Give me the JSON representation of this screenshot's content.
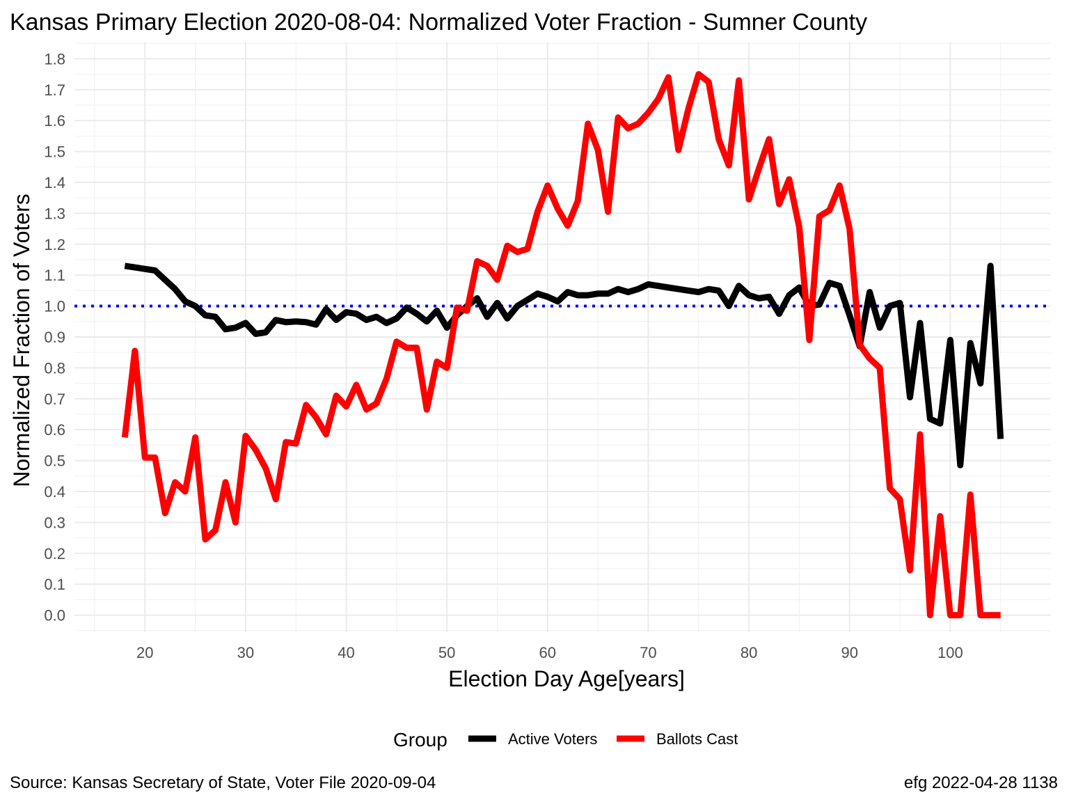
{
  "chart_data": {
    "type": "line",
    "title": "Kansas Primary Election 2020-08-04:  Normalized Voter Fraction - Sumner County",
    "xlabel": "Election Day Age[years]",
    "ylabel": "Normalized Fraction of Voters",
    "xlim": [
      13,
      110
    ],
    "ylim": [
      -0.055,
      1.855
    ],
    "x_ticks": [
      20,
      30,
      40,
      50,
      60,
      70,
      80,
      90,
      100
    ],
    "y_ticks": [
      0.0,
      0.1,
      0.2,
      0.3,
      0.4,
      0.5,
      0.6,
      0.7,
      0.8,
      0.9,
      1.0,
      1.1,
      1.2,
      1.3,
      1.4,
      1.5,
      1.6,
      1.7,
      1.8
    ],
    "y_tick_labels": [
      "0.0",
      "0.1",
      "0.2",
      "0.3",
      "0.4",
      "0.5",
      "0.6",
      "0.7",
      "0.8",
      "0.9",
      "1.0",
      "1.1",
      "1.2",
      "1.3",
      "1.4",
      "1.5",
      "1.6",
      "1.7",
      "1.8"
    ],
    "grid": true,
    "reference_line": {
      "y": 1.0,
      "color": "#0000ff",
      "style": "dotted"
    },
    "legend": {
      "title": "Group",
      "position": "bottom"
    },
    "x": [
      18,
      19,
      20,
      21,
      22,
      23,
      24,
      25,
      26,
      27,
      28,
      29,
      30,
      31,
      32,
      33,
      34,
      35,
      36,
      37,
      38,
      39,
      40,
      41,
      42,
      43,
      44,
      45,
      46,
      47,
      48,
      49,
      50,
      51,
      52,
      53,
      54,
      55,
      56,
      57,
      58,
      59,
      60,
      61,
      62,
      63,
      64,
      65,
      66,
      67,
      68,
      69,
      70,
      71,
      72,
      73,
      74,
      75,
      76,
      77,
      78,
      79,
      80,
      81,
      82,
      83,
      84,
      85,
      86,
      87,
      88,
      89,
      90,
      91,
      92,
      93,
      94,
      95,
      96,
      97,
      98,
      99,
      100,
      101,
      102,
      103,
      104,
      105
    ],
    "series": [
      {
        "name": "Active Voters",
        "color": "#000000",
        "values": [
          1.13,
          1.125,
          1.12,
          1.115,
          1.085,
          1.055,
          1.015,
          1.0,
          0.97,
          0.965,
          0.925,
          0.93,
          0.945,
          0.91,
          0.915,
          0.955,
          0.948,
          0.95,
          0.948,
          0.94,
          0.99,
          0.955,
          0.98,
          0.975,
          0.955,
          0.965,
          0.945,
          0.96,
          0.995,
          0.975,
          0.95,
          0.985,
          0.93,
          0.97,
          1.0,
          1.025,
          0.965,
          1.01,
          0.96,
          1.0,
          1.02,
          1.04,
          1.03,
          1.015,
          1.045,
          1.035,
          1.035,
          1.04,
          1.04,
          1.055,
          1.045,
          1.055,
          1.07,
          1.065,
          1.06,
          1.055,
          1.05,
          1.045,
          1.055,
          1.05,
          1.0,
          1.065,
          1.035,
          1.025,
          1.03,
          0.975,
          1.035,
          1.06,
          1.0,
          1.005,
          1.075,
          1.065,
          0.97,
          0.87,
          1.045,
          0.93,
          1.0,
          1.01,
          0.705,
          0.945,
          0.635,
          0.62,
          0.89,
          0.485,
          0.88,
          0.75,
          1.13,
          0.57
        ]
      },
      {
        "name": "Ballots Cast",
        "color": "#ff0000",
        "values": [
          0.575,
          0.855,
          0.51,
          0.51,
          0.33,
          0.43,
          0.4,
          0.575,
          0.245,
          0.275,
          0.43,
          0.3,
          0.58,
          0.535,
          0.475,
          0.375,
          0.56,
          0.555,
          0.68,
          0.64,
          0.585,
          0.71,
          0.675,
          0.745,
          0.665,
          0.685,
          0.765,
          0.885,
          0.865,
          0.865,
          0.665,
          0.82,
          0.8,
          0.995,
          0.985,
          1.145,
          1.13,
          1.085,
          1.195,
          1.175,
          1.185,
          1.305,
          1.39,
          1.315,
          1.26,
          1.34,
          1.59,
          1.505,
          1.305,
          1.61,
          1.575,
          1.59,
          1.625,
          1.67,
          1.74,
          1.505,
          1.64,
          1.75,
          1.725,
          1.54,
          1.455,
          1.73,
          1.345,
          1.445,
          1.54,
          1.33,
          1.41,
          1.255,
          0.89,
          1.29,
          1.31,
          1.39,
          1.25,
          0.875,
          0.83,
          0.8,
          0.41,
          0.375,
          0.145,
          0.585,
          0.0,
          0.32,
          0.0,
          0.0,
          0.39,
          0.0,
          0.0,
          0.0
        ]
      }
    ]
  },
  "footer": {
    "source": "Source:  Kansas Secretary of State, Voter File  2020-09-04",
    "credit": "efg 2022-04-28 1138"
  }
}
